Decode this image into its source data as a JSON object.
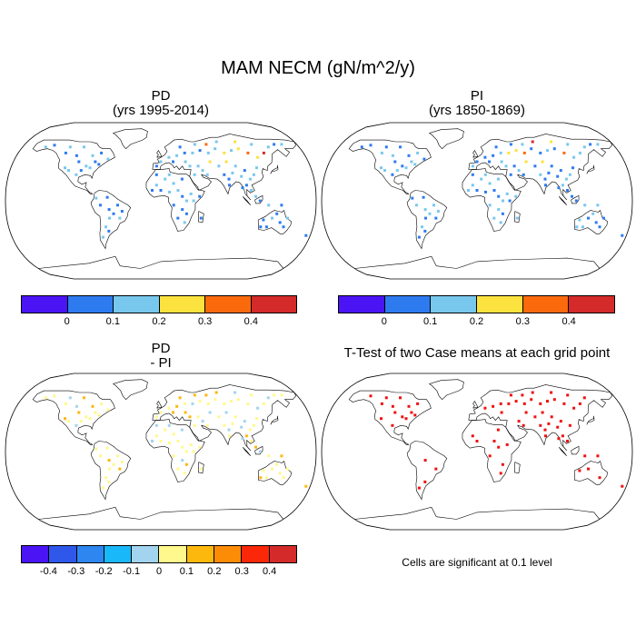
{
  "title": "MAM NECM (gN/m^2/y)",
  "panels": {
    "pd": {
      "title": "PD",
      "subtitle": "(yrs 1995-2014)"
    },
    "pi": {
      "title": "PI",
      "subtitle": "(yrs 1850-1869)"
    },
    "diff": {
      "title": "PD",
      "subtitle": "- PI"
    },
    "ttest": {
      "title": "T-Test of two Case means at each grid point"
    }
  },
  "colorbars": {
    "absolute": {
      "colors": [
        "#4a14f5",
        "#2e7bf0",
        "#78c8ee",
        "#fbe23e",
        "#fa6a0d",
        "#d42a2a"
      ],
      "ticks": [
        "0",
        "0.1",
        "0.2",
        "0.3",
        "0.4"
      ]
    },
    "difference": {
      "colors": [
        "#4a14f5",
        "#2f58eb",
        "#2e86f0",
        "#19b8f8",
        "#a2d4ef",
        "#fff88c",
        "#fcb80d",
        "#fc8c06",
        "#fa2808",
        "#d42a2a"
      ],
      "ticks": [
        "-0.4",
        "-0.3",
        "-0.2",
        "-0.1",
        "0",
        "0.1",
        "0.2",
        "0.3",
        "0.4"
      ]
    }
  },
  "significance_color": "#ee1111",
  "note": "Cells are significant at 0.1 level"
}
